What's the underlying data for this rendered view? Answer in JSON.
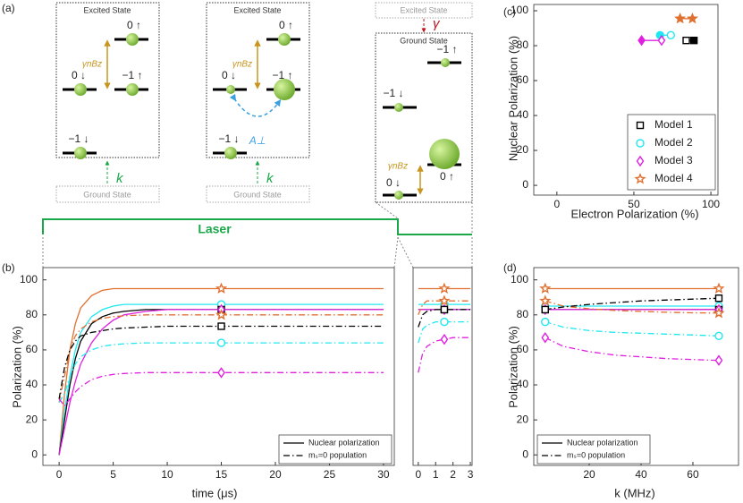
{
  "diagram": {
    "label": "(a)",
    "excited": "Excited State",
    "ground": "Ground State",
    "levels": {
      "up0": "0 ↑",
      "down0": "0 ↓",
      "up1": "−1 ↑",
      "down1": "−1 ↓"
    },
    "zeeman": "γnBz",
    "pump": "k",
    "coupling": "A⊥",
    "decay": "γ",
    "laser": "Laser"
  },
  "chart_data": [
    {
      "type": "line",
      "label": "(b)",
      "xlabel": "time (μs)",
      "ylabel": "Polarization (%)",
      "x": [
        0,
        0.5,
        1,
        1.5,
        2,
        3,
        4,
        5,
        6,
        8,
        10,
        15,
        20,
        25,
        30
      ],
      "xlim": [
        -1.5,
        31
      ],
      "ylim": [
        -6,
        107
      ],
      "xticks": [
        0,
        5,
        10,
        15,
        20,
        25,
        30
      ],
      "yticks": [
        0,
        20,
        40,
        60,
        80,
        100
      ],
      "marker_x": [
        15
      ],
      "legend": [
        "Nuclear polarization",
        "mₛ=0 population"
      ],
      "legend_loc": "lower right",
      "series": [
        {
          "color": "#e07030",
          "style": "solid",
          "marker": "star",
          "values": [
            0,
            35,
            60,
            75,
            84,
            91,
            94,
            95,
            95,
            95,
            95,
            95,
            95,
            95,
            95
          ]
        },
        {
          "color": "#20e8f0",
          "style": "solid",
          "marker": "circle",
          "values": [
            0,
            25,
            45,
            60,
            70,
            79,
            83,
            85,
            86,
            86,
            86,
            86,
            86,
            86,
            86
          ]
        },
        {
          "color": "#000000",
          "style": "solid",
          "marker": "square",
          "values": [
            0,
            20,
            40,
            55,
            65,
            75,
            79,
            81,
            82,
            83,
            83,
            83,
            83,
            83,
            83
          ]
        },
        {
          "color": "#e020e0",
          "style": "solid",
          "marker": "diamond",
          "values": [
            0,
            15,
            30,
            42,
            52,
            64,
            72,
            77,
            80,
            82,
            83,
            83,
            83,
            83,
            83
          ]
        },
        {
          "color": "#e07030",
          "style": "dashdot",
          "marker": "star",
          "values": [
            30,
            45,
            60,
            68,
            72,
            76,
            78,
            79,
            79.5,
            80,
            80,
            80,
            80,
            80,
            80
          ]
        },
        {
          "color": "#000000",
          "style": "dashdot",
          "marker": "square",
          "values": [
            32,
            50,
            60,
            65,
            68,
            70,
            71,
            72,
            72.5,
            73,
            73.5,
            73.5,
            73.5,
            73.5,
            73.5
          ]
        },
        {
          "color": "#20e8f0",
          "style": "dashdot",
          "marker": "circle",
          "values": [
            30,
            35,
            45,
            52,
            56,
            60,
            62,
            63,
            63.5,
            64,
            64,
            64,
            64,
            64,
            64
          ]
        },
        {
          "color": "#e020e0",
          "style": "dashdot",
          "marker": "diamond",
          "values": [
            32,
            28,
            32,
            36,
            39,
            43,
            45,
            46,
            46.5,
            47,
            47,
            47,
            47,
            47,
            47
          ]
        }
      ]
    },
    {
      "type": "line",
      "x": [
        0,
        0.25,
        0.5,
        1,
        1.5,
        2,
        3
      ],
      "xlim": [
        -0.3,
        3.1
      ],
      "ylim": [
        -6,
        107
      ],
      "xticks": [
        0,
        1,
        2,
        3
      ],
      "marker_x": [
        1.5
      ],
      "series": [
        {
          "color": "#e07030",
          "style": "solid",
          "marker": "star",
          "values": [
            95,
            95,
            95,
            95,
            95,
            95,
            95
          ]
        },
        {
          "color": "#20e8f0",
          "style": "solid",
          "marker": "circle",
          "values": [
            86,
            86,
            86,
            86,
            86,
            86,
            86
          ]
        },
        {
          "color": "#000000",
          "style": "solid",
          "marker": "square",
          "values": [
            83,
            83,
            83,
            83,
            83,
            83,
            83
          ]
        },
        {
          "color": "#e020e0",
          "style": "solid",
          "marker": "diamond",
          "values": [
            83,
            83,
            83,
            83,
            83,
            83,
            83
          ]
        },
        {
          "color": "#e07030",
          "style": "dashdot",
          "marker": "star",
          "values": [
            80,
            86,
            88,
            88,
            88,
            88,
            88
          ]
        },
        {
          "color": "#000000",
          "style": "dashdot",
          "marker": "square",
          "values": [
            73,
            80,
            82,
            83,
            83,
            83,
            83
          ]
        },
        {
          "color": "#20e8f0",
          "style": "dashdot",
          "marker": "circle",
          "values": [
            64,
            72,
            74,
            76,
            76,
            76,
            76
          ]
        },
        {
          "color": "#e020e0",
          "style": "dashdot",
          "marker": "diamond",
          "values": [
            47,
            58,
            62,
            65,
            66,
            67,
            67
          ]
        }
      ]
    },
    {
      "type": "scatter",
      "label": "(c)",
      "xlabel": "Electron Polarization (%)",
      "ylabel": "Nuclear Polarization (%)",
      "xlim": [
        -15,
        104.6
      ],
      "ylim": [
        -5.6,
        103.6
      ],
      "xticks": [
        0,
        50,
        100
      ],
      "yticks": [
        0,
        20,
        40,
        60,
        80,
        100
      ],
      "legend_loc": "lower right",
      "series": [
        {
          "name": "Model 1",
          "color": "#000000",
          "marker": "square",
          "filled": [
            false,
            true
          ],
          "x": [
            84,
            89
          ],
          "values": [
            83,
            83
          ]
        },
        {
          "name": "Model 2",
          "color": "#20e8f0",
          "marker": "circle",
          "filled": [
            true,
            false
          ],
          "x": [
            67,
            74
          ],
          "values": [
            86,
            86
          ]
        },
        {
          "name": "Model 3",
          "color": "#e020e0",
          "marker": "diamond",
          "filled": [
            true,
            false
          ],
          "x": [
            55,
            68
          ],
          "values": [
            83,
            83
          ]
        },
        {
          "name": "Model 4",
          "color": "#e07030",
          "marker": "star",
          "filled": [
            true,
            true
          ],
          "x": [
            80,
            88
          ],
          "values": [
            95.5,
            95.5
          ]
        }
      ]
    },
    {
      "type": "line",
      "label": "(d)",
      "xlabel": "k (MHz)",
      "ylabel": "Polarization (%)",
      "x": [
        3,
        10,
        20,
        30,
        40,
        50,
        60,
        70
      ],
      "xlim": [
        -1.4,
        77.6
      ],
      "ylim": [
        -6,
        107
      ],
      "xticks": [
        20,
        40,
        60
      ],
      "yticks": [
        0,
        20,
        40,
        60,
        80,
        100
      ],
      "marker_x": [
        3,
        70
      ],
      "legend": [
        "Nuclear polarization",
        "mₛ=0 population"
      ],
      "legend_loc": "lower left",
      "series": [
        {
          "color": "#e07030",
          "style": "solid",
          "marker": "star",
          "values": [
            95,
            95,
            95,
            95,
            95,
            95,
            95,
            95
          ]
        },
        {
          "color": "#20e8f0",
          "style": "solid",
          "marker": "circle",
          "values": [
            85,
            85,
            85,
            85,
            85,
            85,
            85,
            85
          ]
        },
        {
          "color": "#000000",
          "style": "solid",
          "marker": "square",
          "values": [
            83,
            83,
            83,
            83,
            83,
            83,
            83,
            83
          ]
        },
        {
          "color": "#e020e0",
          "style": "solid",
          "marker": "diamond",
          "values": [
            83,
            83,
            83,
            83,
            83,
            83,
            83,
            83
          ]
        },
        {
          "color": "#e07030",
          "style": "dashdot",
          "marker": "star",
          "values": [
            88,
            85,
            83.5,
            82.5,
            82,
            81.5,
            81.2,
            81
          ]
        },
        {
          "color": "#000000",
          "style": "dashdot",
          "marker": "square",
          "values": [
            83,
            84.5,
            86,
            87,
            88,
            88.5,
            89,
            89.5
          ]
        },
        {
          "color": "#20e8f0",
          "style": "dashdot",
          "marker": "circle",
          "values": [
            76,
            73,
            71,
            70,
            69.5,
            69,
            68.5,
            68
          ]
        },
        {
          "color": "#e020e0",
          "style": "dashdot",
          "marker": "diamond",
          "values": [
            67,
            62,
            59,
            57,
            56,
            55,
            54.5,
            54
          ]
        }
      ]
    }
  ]
}
